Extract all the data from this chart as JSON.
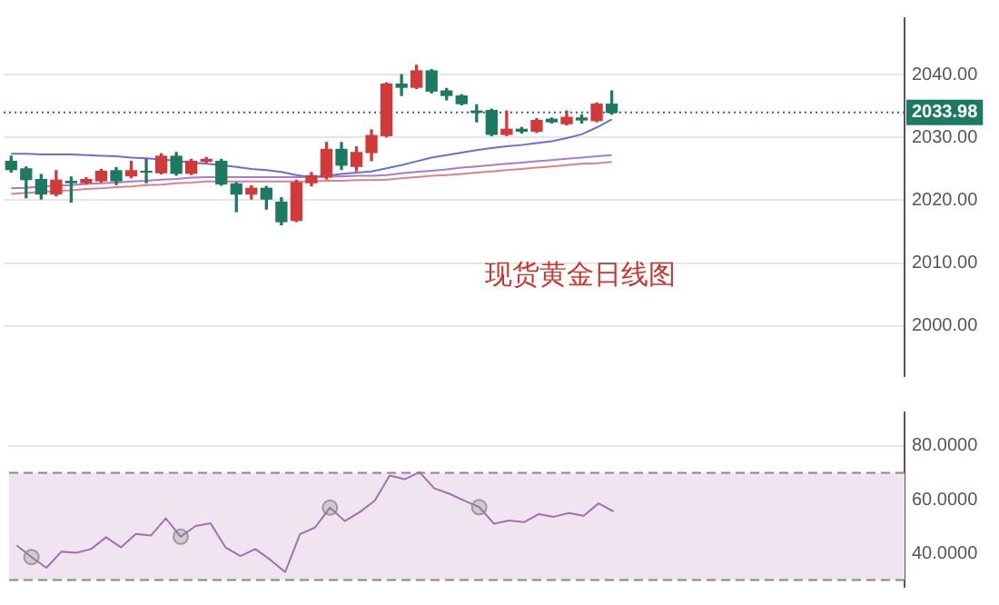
{
  "chart_data": [
    {
      "type": "candlestick",
      "title": "现货黄金日线图",
      "tick_labels": "y",
      "grid": "y",
      "categories": [
        null,
        null,
        null,
        null,
        null,
        null,
        null,
        null,
        null,
        null,
        null,
        null,
        null,
        null,
        null,
        null,
        null,
        null,
        null,
        null,
        null,
        null,
        null,
        null,
        null,
        null,
        null,
        null,
        null,
        null,
        null,
        null,
        null,
        null,
        null,
        null,
        null,
        null,
        null,
        null,
        null,
        null,
        null,
        null,
        null,
        null,
        null,
        null,
        null,
        null,
        null,
        null,
        null,
        null,
        null,
        null,
        null,
        null,
        null,
        null
      ],
      "ohlc": [
        [
          2026.2,
          2027,
          2024.5,
          2024.9
        ],
        [
          2025,
          2025.3,
          2020.4,
          2023.3
        ],
        [
          2023.3,
          2024.1,
          2020.2,
          2021
        ],
        [
          2021,
          2024.7,
          2020.7,
          2023.2
        ],
        [
          2023,
          2023.7,
          2019.7,
          2022.8
        ],
        [
          2022.8,
          2023.6,
          2022.6,
          2023.3
        ],
        [
          2023.1,
          2024.9,
          2022.9,
          2024.6
        ],
        [
          2024.7,
          2025.2,
          2022.5,
          2023.1
        ],
        [
          2023.9,
          2026.2,
          2023.6,
          2024.7
        ],
        [
          2024.6,
          2026.5,
          2022.8,
          2024.5
        ],
        [
          2024.4,
          2027.4,
          2024.2,
          2027
        ],
        [
          2027,
          2027.6,
          2024,
          2024.3
        ],
        [
          2024.3,
          2026.5,
          2024.1,
          2026.2
        ],
        [
          2026.2,
          2026.8,
          2026,
          2026.5
        ],
        [
          2026.2,
          2026.5,
          2022.4,
          2022.6
        ],
        [
          2022.6,
          2022.8,
          2018.2,
          2021
        ],
        [
          2021,
          2022.3,
          2020.2,
          2021.9
        ],
        [
          2021.9,
          2022.2,
          2018.6,
          2020.2
        ],
        [
          2019.7,
          2020.4,
          2016.1,
          2016.6
        ],
        [
          2016.8,
          2023.2,
          2016.6,
          2022.8
        ],
        [
          2022.8,
          2024.4,
          2022.3,
          2023.9
        ],
        [
          2023.7,
          2029.2,
          2023.4,
          2028.1
        ],
        [
          2028.1,
          2029.2,
          2024.9,
          2025.6
        ],
        [
          2025.4,
          2028.5,
          2024.7,
          2027.6
        ],
        [
          2027.6,
          2031.2,
          2026.3,
          2030.3
        ],
        [
          2030.3,
          2038.7,
          2030.1,
          2038.5
        ],
        [
          2038.5,
          2040,
          2036.7,
          2038
        ],
        [
          2038,
          2041.5,
          2037.8,
          2040.6
        ],
        [
          2040.6,
          2040.8,
          2037.1,
          2037.4
        ],
        [
          2037.4,
          2037.8,
          2036,
          2036.7
        ],
        [
          2036.6,
          2036.8,
          2035.2,
          2035.4
        ],
        [
          2034.2,
          2035.2,
          2032.5,
          2034
        ],
        [
          2034.3,
          2034.5,
          2030.3,
          2030.5
        ],
        [
          2030.5,
          2034.2,
          2030.3,
          2031.3
        ],
        [
          2031.3,
          2031.6,
          2030.7,
          2031
        ],
        [
          2031,
          2033,
          2030.8,
          2032.7
        ],
        [
          2032.9,
          2033.1,
          2032.3,
          2032.5
        ],
        [
          2032.2,
          2034.2,
          2032,
          2033.2
        ],
        [
          2033.1,
          2033.6,
          2032.3,
          2032.8
        ],
        [
          2032.7,
          2035.5,
          2032.5,
          2035.3
        ],
        [
          2035.3,
          2037.4,
          2033.7,
          2033.98
        ],
        null,
        null,
        null,
        null,
        null,
        null,
        null,
        null,
        null,
        null,
        null,
        null,
        null,
        null,
        null,
        null,
        null,
        null,
        null
      ],
      "colors": [
        "#1d7a62",
        "#1d7a62",
        "#1d7a62",
        "#d23a3a",
        "#1d7a62",
        "#d23a3a",
        "#d23a3a",
        "#1d7a62",
        "#d23a3a",
        "#1d7a62",
        "#d23a3a",
        "#1d7a62",
        "#d23a3a",
        "#d23a3a",
        "#1d7a62",
        "#1d7a62",
        "#d23a3a",
        "#1d7a62",
        "#1d7a62",
        "#d23a3a",
        "#d23a3a",
        "#d23a3a",
        "#1d7a62",
        "#d23a3a",
        "#d23a3a",
        "#d23a3a",
        "#1d7a62",
        "#d23a3a",
        "#1d7a62",
        "#1d7a62",
        "#1d7a62",
        "#1d7a62",
        "#1d7a62",
        "#d23a3a",
        "#1d7a62",
        "#d23a3a",
        "#1d7a62",
        "#d23a3a",
        "#1d7a62",
        "#d23a3a",
        "#1d7a62",
        null,
        null,
        null,
        null,
        null,
        null,
        null,
        null,
        null,
        null,
        null,
        null,
        null,
        null,
        null,
        null,
        null,
        null,
        null
      ],
      "series": [
        {
          "type": "line",
          "color": "#6a6fd6",
          "values": [
            2027.4,
            2027.4,
            2027.3,
            2027.3,
            2027.3,
            2027.2,
            2027.1,
            2027,
            2026.8,
            2026.7,
            2026.5,
            2026.3,
            2026,
            2025.8,
            2025.6,
            2025.3,
            2025,
            2024.8,
            2024.5,
            2024,
            2023.7,
            2023.9,
            2024.2,
            2024.4,
            2024.6,
            2025.1,
            2025.6,
            2026.2,
            2026.8,
            2027.2,
            2027.6,
            2028,
            2028.3,
            2028.6,
            2028.8,
            2029.1,
            2029.4,
            2029.9,
            2030.5,
            2031.6,
            2032.9,
            null,
            null,
            null,
            null,
            null,
            null,
            null,
            null,
            null,
            null,
            null,
            null,
            null,
            null,
            null,
            null,
            null,
            null,
            null
          ]
        },
        {
          "type": "line",
          "color": "#a87ad0",
          "values": [
            2021.9,
            2022,
            2022.2,
            2022.3,
            2022.4,
            2022.6,
            2022.7,
            2022.8,
            2023,
            2023.1,
            2023.3,
            2023.4,
            2023.6,
            2023.7,
            2023.7,
            2023.7,
            2023.7,
            2023.7,
            2023.7,
            2023.7,
            2023.7,
            2023.8,
            2023.8,
            2023.9,
            2023.9,
            2024,
            2024.3,
            2024.5,
            2024.7,
            2024.9,
            2025.2,
            2025.4,
            2025.6,
            2025.8,
            2026,
            2026.2,
            2026.4,
            2026.6,
            2026.8,
            2027,
            2027.2,
            null,
            null,
            null,
            null,
            null,
            null,
            null,
            null,
            null,
            null,
            null,
            null,
            null,
            null,
            null,
            null,
            null,
            null,
            null
          ]
        },
        {
          "type": "line",
          "color": "#e0808a",
          "values": [
            2021,
            2021.2,
            2021.3,
            2021.5,
            2021.6,
            2021.8,
            2021.9,
            2022.1,
            2022.2,
            2022.4,
            2022.5,
            2022.7,
            2022.8,
            2023,
            2023,
            2023,
            2023,
            2023,
            2023,
            2023,
            2023,
            2023.1,
            2023.1,
            2023.2,
            2023.2,
            2023.3,
            2023.5,
            2023.7,
            2023.9,
            2024,
            2024.2,
            2024.4,
            2024.6,
            2024.8,
            2025,
            2025.2,
            2025.4,
            2025.6,
            2025.8,
            2025.9,
            2026.1,
            null,
            null,
            null,
            null,
            null,
            null,
            null,
            null,
            null,
            null,
            null,
            null,
            null,
            null,
            null,
            null,
            null,
            null,
            null
          ]
        }
      ],
      "ylim": [
        1992,
        2049
      ],
      "yticks": [
        {
          "value": 2000,
          "label": "2000.00"
        },
        {
          "value": 2010,
          "label": "2010.00"
        },
        {
          "value": 2020,
          "label": "2020.00"
        },
        {
          "value": 2030,
          "label": "2030.00"
        },
        {
          "value": 2040,
          "label": "2040.00"
        }
      ],
      "ref_lines": [
        {
          "axis": "y",
          "value": 2033.98,
          "label": "2033.98",
          "color": "#1d7a62",
          "line_style": "dotted"
        }
      ]
    },
    {
      "type": "line",
      "tick_labels": "y",
      "grid": "y",
      "categories": [
        null,
        null,
        null,
        null,
        null,
        null,
        null,
        null,
        null,
        null,
        null,
        null,
        null,
        null,
        null,
        null,
        null,
        null,
        null,
        null,
        null,
        null,
        null,
        null,
        null,
        null,
        null,
        null,
        null,
        null,
        null,
        null,
        null,
        null,
        null,
        null,
        null,
        null,
        null,
        null,
        null,
        null,
        null,
        null,
        null,
        null,
        null,
        null,
        null,
        null,
        null,
        null,
        null,
        null,
        null,
        null,
        null,
        null,
        null,
        null
      ],
      "series": [
        {
          "type": "line",
          "color": "#a36fb0",
          "marker": "none",
          "values": [
            43,
            38.6,
            34.6,
            40.6,
            40.2,
            41.6,
            46,
            42.2,
            47.2,
            46.6,
            53,
            46.2,
            50.2,
            51.2,
            42.2,
            39,
            41.6,
            37.6,
            33,
            47.2,
            49.6,
            57,
            52,
            55.4,
            59.6,
            69,
            67.6,
            70.2,
            64.2,
            62.2,
            59.6,
            57.2,
            51,
            52.2,
            51.6,
            54.6,
            53.6,
            55,
            54,
            58.6,
            55.6,
            null,
            null,
            null,
            null,
            null,
            null,
            null,
            null,
            null,
            null,
            null,
            null,
            null,
            null,
            null,
            null,
            null,
            null,
            null
          ]
        },
        {
          "type": "scatter",
          "color": "#9a9a9a",
          "marker": "circle",
          "values": [
            null,
            38.6,
            null,
            null,
            null,
            null,
            null,
            null,
            null,
            null,
            null,
            46.2,
            null,
            null,
            null,
            null,
            null,
            null,
            null,
            null,
            null,
            57,
            null,
            null,
            null,
            null,
            null,
            null,
            null,
            null,
            null,
            57.2,
            null,
            null,
            null,
            null,
            null,
            null,
            null,
            null,
            null,
            null,
            null,
            null,
            null,
            null,
            null,
            null,
            null,
            null,
            null,
            null,
            null,
            null,
            null,
            null,
            null,
            null,
            null,
            null
          ]
        }
      ],
      "ylim": [
        27.5,
        92.5
      ],
      "yticks": [
        {
          "value": 40,
          "label": "40.0000"
        },
        {
          "value": 60,
          "label": "60.0000"
        },
        {
          "value": 80,
          "label": "80.0000"
        }
      ],
      "bands": [
        {
          "axis": "y",
          "from": 30,
          "to": 70,
          "color": "#f1e4f1"
        }
      ],
      "ref_lines": [
        {
          "axis": "y",
          "value": 70,
          "color": "#888888",
          "line_style": "dashed"
        },
        {
          "axis": "y",
          "value": 30,
          "color": "#888888",
          "line_style": "dashed"
        }
      ]
    }
  ]
}
